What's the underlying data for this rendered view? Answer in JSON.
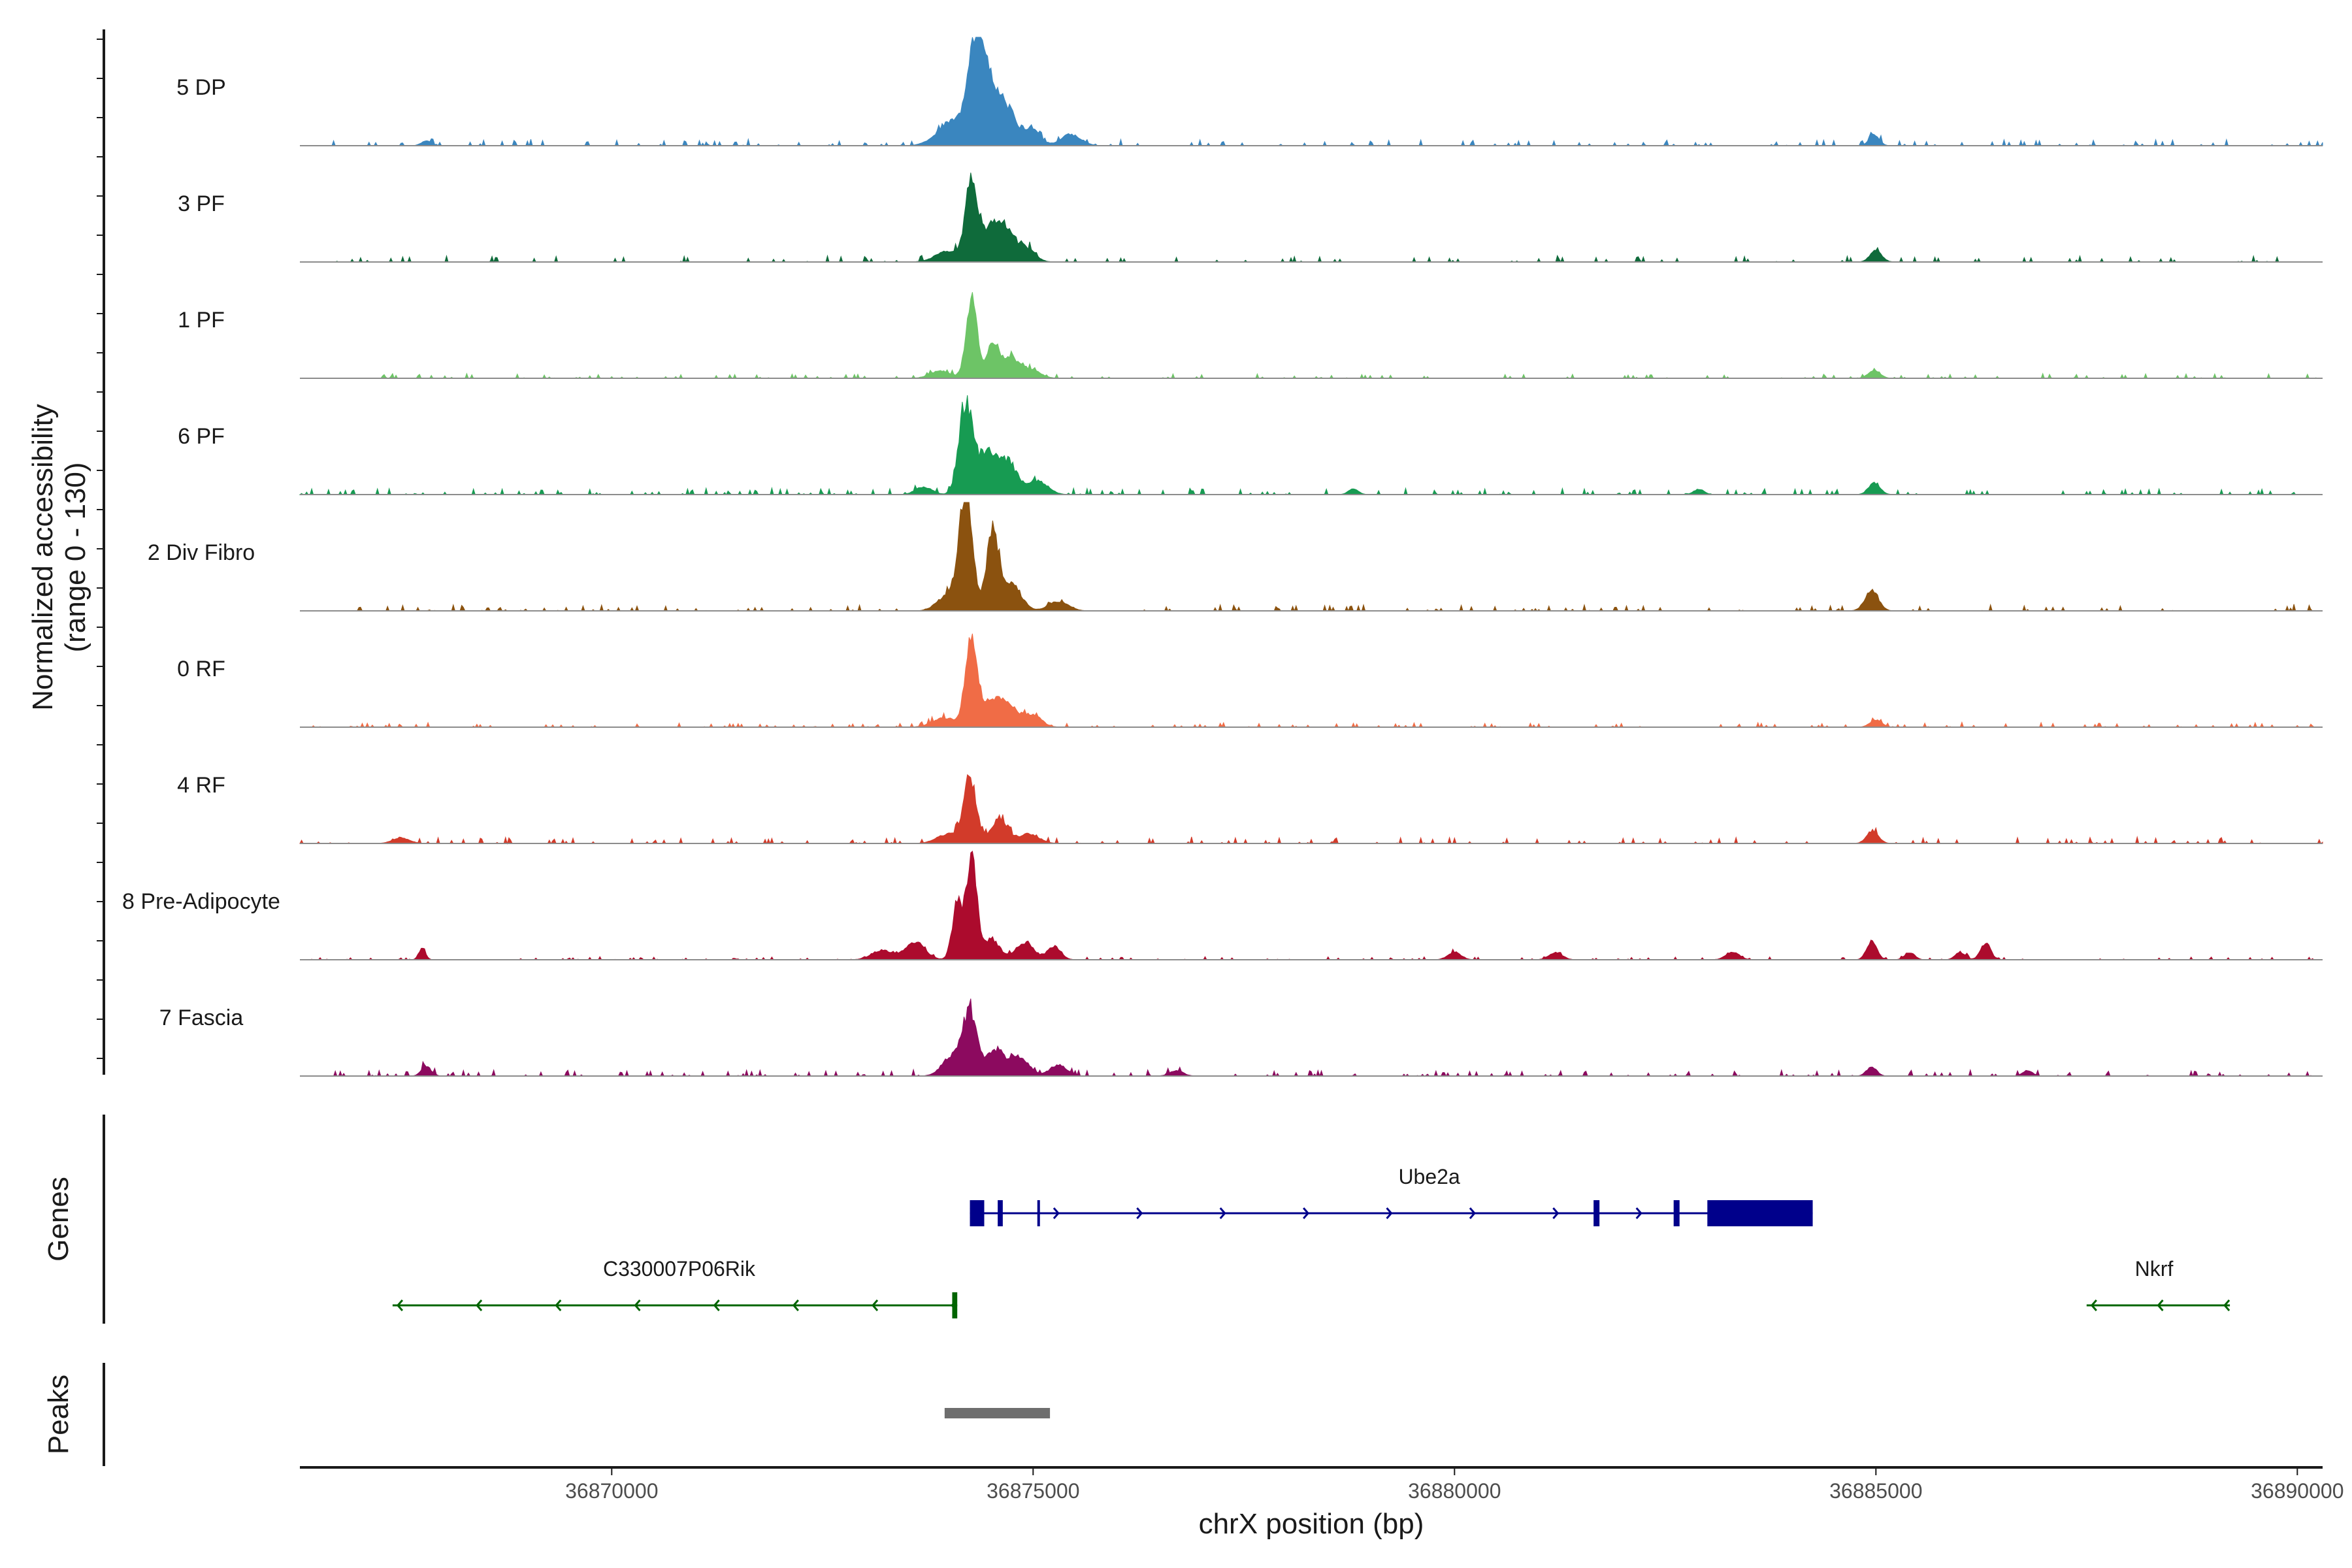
{
  "chart_data": {
    "type": "area",
    "title": "",
    "xlabel": "chrX position (bp)",
    "ylabel_line1": "Normalized accessibility",
    "ylabel_line2": "(range 0 - 130)",
    "ylim": [
      0,
      130
    ],
    "xlim": [
      36866300,
      36890300
    ],
    "x_ticks": [
      36870000,
      36875000,
      36880000,
      36885000,
      36890000
    ],
    "x_tick_labels": [
      "36870000",
      "36875000",
      "36880000",
      "36885000",
      "36890000"
    ],
    "panel_titles": {
      "genes": "Genes",
      "peaks": "Peaks"
    },
    "tracks": [
      {
        "name": "5 DP",
        "color": "#3a86bf",
        "peaks": [
          [
            36874300,
            92,
            90
          ],
          [
            36874400,
            55,
            80
          ],
          [
            36874550,
            48,
            90
          ],
          [
            36874720,
            32,
            90
          ],
          [
            36874980,
            18,
            100
          ],
          [
            36875450,
            12,
            120
          ],
          [
            36874050,
            16,
            140
          ],
          [
            36873950,
            10,
            160
          ],
          [
            36884980,
            12,
            60
          ],
          [
            36867800,
            5,
            60
          ]
        ],
        "noise": 4,
        "seed": 11
      },
      {
        "name": "3 PF",
        "color": "#0f6b3b",
        "peaks": [
          [
            36874270,
            86,
            70
          ],
          [
            36874500,
            36,
            100
          ],
          [
            36874680,
            30,
            90
          ],
          [
            36874900,
            16,
            110
          ],
          [
            36874000,
            12,
            150
          ],
          [
            36885000,
            12,
            70
          ]
        ],
        "noise": 4,
        "seed": 23
      },
      {
        "name": "1 PF",
        "color": "#6dc466",
        "peaks": [
          [
            36874270,
            84,
            65
          ],
          [
            36874520,
            38,
            70
          ],
          [
            36874720,
            22,
            90
          ],
          [
            36874950,
            10,
            120
          ],
          [
            36873900,
            8,
            120
          ],
          [
            36884980,
            9,
            70
          ]
        ],
        "noise": 3,
        "seed": 37
      },
      {
        "name": "6 PF",
        "color": "#179b52",
        "peaks": [
          [
            36874200,
            95,
            80
          ],
          [
            36874450,
            45,
            110
          ],
          [
            36874700,
            34,
            110
          ],
          [
            36875050,
            15,
            120
          ],
          [
            36873700,
            8,
            100
          ],
          [
            36884980,
            12,
            70
          ],
          [
            36878800,
            6,
            60
          ],
          [
            36882900,
            6,
            60
          ]
        ],
        "noise": 4,
        "seed": 41
      },
      {
        "name": "2 Div Fibro",
        "color": "#8b520f",
        "peaks": [
          [
            36874200,
            128,
            80
          ],
          [
            36874520,
            85,
            70
          ],
          [
            36874750,
            28,
            110
          ],
          [
            36873980,
            16,
            120
          ],
          [
            36875300,
            10,
            120
          ],
          [
            36884950,
            22,
            80
          ]
        ],
        "noise": 4,
        "seed": 53
      },
      {
        "name": "0 RF",
        "color": "#f06c46",
        "peaks": [
          [
            36874270,
            100,
            70
          ],
          [
            36874520,
            30,
            100
          ],
          [
            36874720,
            22,
            90
          ],
          [
            36874980,
            14,
            110
          ],
          [
            36873950,
            10,
            140
          ],
          [
            36885000,
            8,
            70
          ]
        ],
        "noise": 3,
        "seed": 67
      },
      {
        "name": "4 RF",
        "color": "#d23b2a",
        "peaks": [
          [
            36874250,
            70,
            75
          ],
          [
            36874600,
            26,
            100
          ],
          [
            36874000,
            10,
            140
          ],
          [
            36874950,
            10,
            120
          ],
          [
            36884960,
            14,
            70
          ],
          [
            36867500,
            6,
            100
          ]
        ],
        "noise": 4,
        "seed": 79
      },
      {
        "name": "8 Pre-Adipocyte",
        "color": "#ac0b2d",
        "peaks": [
          [
            36874270,
            112,
            60
          ],
          [
            36874100,
            60,
            60
          ],
          [
            36874500,
            22,
            100
          ],
          [
            36873600,
            18,
            120
          ],
          [
            36873200,
            10,
            120
          ],
          [
            36874900,
            18,
            110
          ],
          [
            36875250,
            14,
            80
          ],
          [
            36884950,
            20,
            60
          ],
          [
            36886300,
            18,
            60
          ],
          [
            36867750,
            12,
            40
          ],
          [
            36880000,
            8,
            80
          ],
          [
            36881200,
            8,
            80
          ],
          [
            36883300,
            8,
            80
          ],
          [
            36885400,
            8,
            60
          ],
          [
            36886000,
            8,
            60
          ]
        ],
        "noise": 2,
        "seed": 83
      },
      {
        "name": "7 Fascia",
        "color": "#8c0a5f",
        "peaks": [
          [
            36874250,
            64,
            80
          ],
          [
            36874050,
            22,
            120
          ],
          [
            36874550,
            26,
            120
          ],
          [
            36874850,
            18,
            110
          ],
          [
            36875300,
            12,
            100
          ],
          [
            36884950,
            10,
            60
          ],
          [
            36867800,
            10,
            60
          ],
          [
            36886800,
            6,
            60
          ],
          [
            36876700,
            6,
            80
          ]
        ],
        "noise": 4,
        "seed": 97
      }
    ],
    "genes": [
      {
        "name": "Ube2a",
        "strand": "+",
        "color": "#00008b",
        "start": 36874250,
        "end": 36884250,
        "exons": [
          [
            36874250,
            36874420
          ],
          [
            36874580,
            36874640
          ],
          [
            36875050,
            36875070
          ],
          [
            36881650,
            36881720
          ],
          [
            36882600,
            36882670
          ],
          [
            36883000,
            36884250
          ]
        ]
      },
      {
        "name": "C330007P06Rik",
        "strand": "-",
        "color": "#006400",
        "start": 36867400,
        "end": 36874100,
        "exons": [
          [
            36874040,
            36874100
          ]
        ]
      },
      {
        "name": "Nkrf",
        "strand": "-",
        "color": "#006400",
        "start": 36887500,
        "end": 36889200,
        "exons": []
      }
    ],
    "peak_regions": [
      {
        "start": 36873950,
        "end": 36875200,
        "color": "#6e6e6e"
      }
    ]
  }
}
